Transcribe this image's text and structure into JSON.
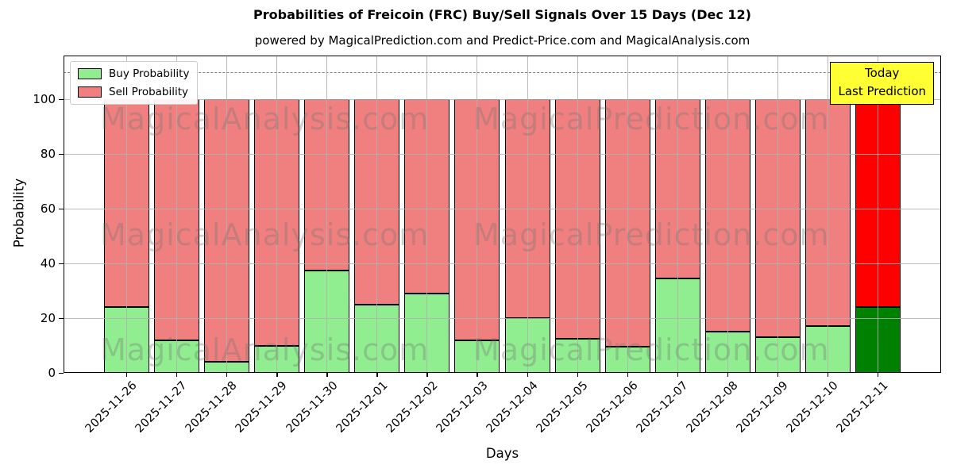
{
  "title": "Probabilities of Freicoin (FRC) Buy/Sell Signals Over 15 Days (Dec 12)",
  "subtitle": "powered by MagicalPrediction.com and Predict-Price.com and MagicalAnalysis.com",
  "legend": {
    "items": [
      {
        "label": "Buy Probability",
        "color": "#90EE90"
      },
      {
        "label": "Sell Probability",
        "color": "#F08080"
      }
    ]
  },
  "annotation_box": {
    "lines": [
      "Today",
      "Last Prediction"
    ],
    "bg_color": "#FFFF33"
  },
  "watermarks": {
    "left": "MagicalAnalysis.com",
    "right": "MagicalPrediction.com"
  },
  "axes": {
    "xlabel": "Days",
    "ylabel": "Probability",
    "yticks": [
      0,
      20,
      40,
      60,
      80,
      100
    ]
  },
  "colors": {
    "buy": "#90EE90",
    "sell": "#F08080",
    "today_buy": "#008000",
    "today_sell": "#FF0000",
    "bar_edge": "#000000",
    "grid": "#b0b0b0",
    "dashed_line": "#7f7f7f"
  },
  "chart_data": {
    "type": "bar",
    "stacked": true,
    "title": "Probabilities of Freicoin (FRC) Buy/Sell Signals Over 15 Days (Dec 12)",
    "xlabel": "Days",
    "ylabel": "Probability",
    "ylim": [
      0,
      116
    ],
    "grid": true,
    "legend_position": "upper left",
    "dashed_line_y": 110,
    "categories": [
      "2025-11-26",
      "2025-11-27",
      "2025-11-28",
      "2025-11-29",
      "2025-11-30",
      "2025-12-01",
      "2025-12-02",
      "2025-12-03",
      "2025-12-04",
      "2025-12-05",
      "2025-12-06",
      "2025-12-07",
      "2025-12-08",
      "2025-12-09",
      "2025-12-10",
      "2025-12-11"
    ],
    "series": [
      {
        "name": "Buy Probability",
        "color": "#90EE90",
        "values": [
          24,
          12,
          4,
          10,
          37.5,
          25,
          29,
          12,
          20,
          12.5,
          9.5,
          34.5,
          15,
          13,
          17,
          24
        ]
      },
      {
        "name": "Sell Probability",
        "color": "#F08080",
        "values": [
          76,
          88,
          96,
          90,
          62.5,
          75,
          71,
          88,
          80,
          87.5,
          90.5,
          65.5,
          85,
          87,
          83,
          76
        ]
      }
    ],
    "today_index": 15,
    "today_colors": {
      "buy": "#008000",
      "sell": "#FF0000"
    }
  }
}
